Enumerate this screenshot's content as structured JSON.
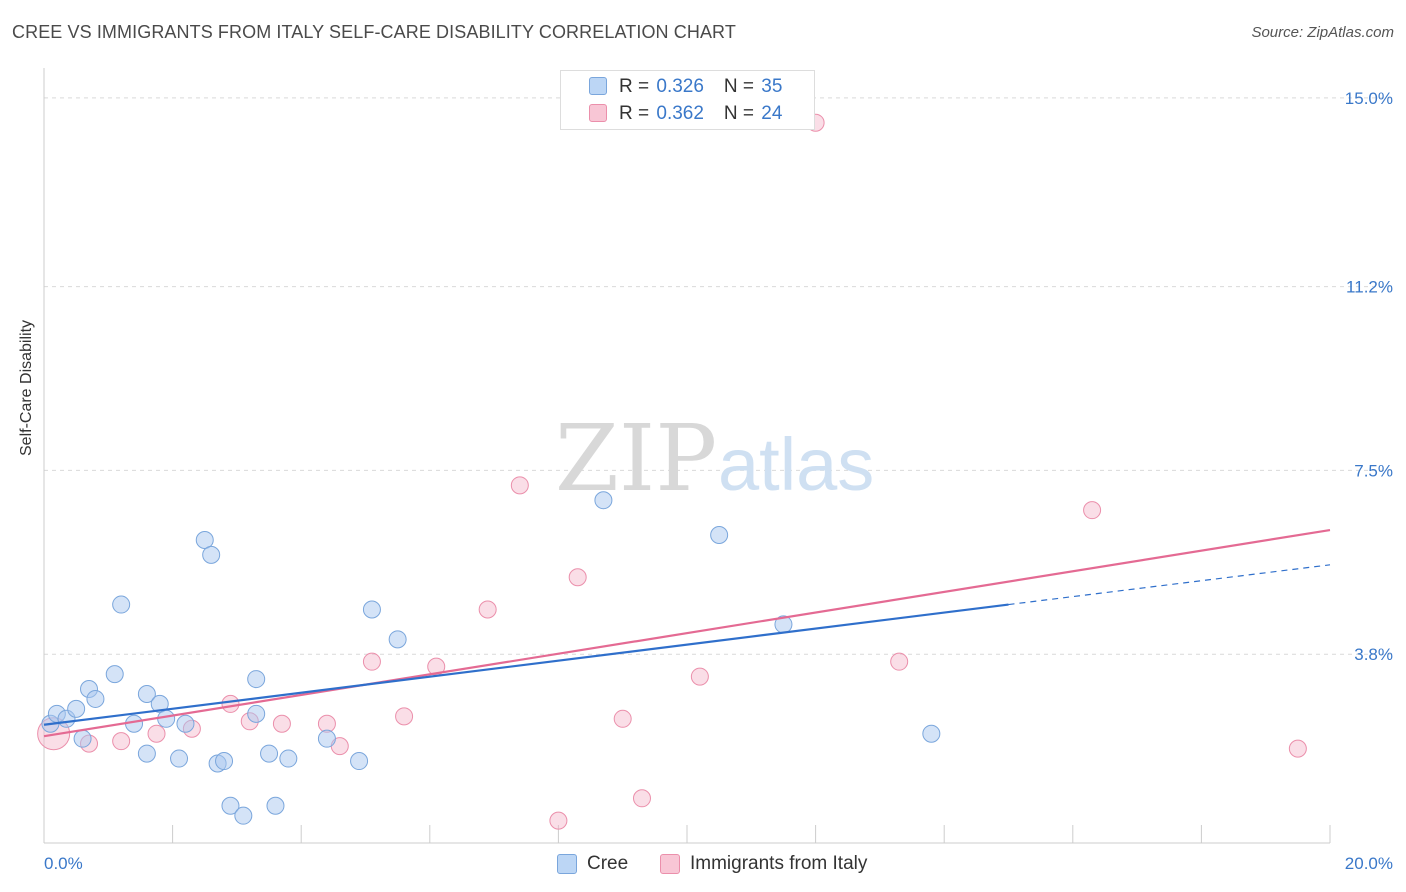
{
  "header": {
    "title": "CREE VS IMMIGRANTS FROM ITALY SELF-CARE DISABILITY CORRELATION CHART",
    "source": "Source: ZipAtlas.com"
  },
  "watermark": {
    "zip": "ZIP",
    "atlas": "atlas"
  },
  "legend": {
    "r_label": "R = ",
    "n_label": "N = ",
    "rows": [
      {
        "name": "Cree",
        "r": "0.326",
        "n": "35"
      },
      {
        "name": "Immigrants from Italy",
        "r": "0.362",
        "n": "24"
      }
    ]
  },
  "colors": {
    "cree_fill": "#a9c8f0",
    "cree_stroke": "#7aa6dc",
    "cree_line": "#2f6fcb",
    "italy_fill": "#f5b6c9",
    "italy_stroke": "#eb8fab",
    "italy_line": "#e46a93",
    "tick_label": "#3a78c9",
    "grid": "#d9d9d9"
  },
  "chart_data": {
    "type": "scatter",
    "title": "CREE VS IMMIGRANTS FROM ITALY SELF-CARE DISABILITY CORRELATION CHART",
    "xlabel": "",
    "ylabel": "Self-Care Disability",
    "xlim": [
      0,
      20
    ],
    "ylim": [
      0,
      15.4
    ],
    "x_tick_labels": [
      "0.0%",
      "20.0%"
    ],
    "y_ticks": [
      3.8,
      7.5,
      11.2,
      15.0
    ],
    "y_tick_labels": [
      "3.8%",
      "7.5%",
      "11.2%",
      "15.0%"
    ],
    "grid": true,
    "legend_position": "top-center",
    "series": [
      {
        "name": "Cree",
        "points": [
          [
            0.1,
            2.4
          ],
          [
            0.2,
            2.6
          ],
          [
            0.35,
            2.5
          ],
          [
            0.5,
            2.7
          ],
          [
            0.6,
            2.1
          ],
          [
            0.7,
            3.1
          ],
          [
            0.8,
            2.9
          ],
          [
            1.1,
            3.4
          ],
          [
            1.2,
            4.8
          ],
          [
            1.4,
            2.4
          ],
          [
            1.6,
            1.8
          ],
          [
            1.6,
            3.0
          ],
          [
            1.8,
            2.8
          ],
          [
            1.9,
            2.5
          ],
          [
            2.1,
            1.7
          ],
          [
            2.2,
            2.4
          ],
          [
            2.5,
            6.1
          ],
          [
            2.6,
            5.8
          ],
          [
            2.7,
            1.6
          ],
          [
            2.8,
            1.65
          ],
          [
            2.9,
            0.75
          ],
          [
            3.1,
            0.55
          ],
          [
            3.3,
            3.3
          ],
          [
            3.3,
            2.6
          ],
          [
            3.5,
            1.8
          ],
          [
            3.6,
            0.75
          ],
          [
            3.8,
            1.7
          ],
          [
            4.4,
            2.1
          ],
          [
            4.9,
            1.65
          ],
          [
            5.1,
            4.7
          ],
          [
            5.5,
            4.1
          ],
          [
            8.7,
            6.9
          ],
          [
            10.5,
            6.2
          ],
          [
            11.5,
            4.4
          ],
          [
            13.8,
            2.2
          ]
        ]
      },
      {
        "name": "Immigrants from Italy",
        "points": [
          [
            0.15,
            2.2
          ],
          [
            0.7,
            2.0
          ],
          [
            1.2,
            2.05
          ],
          [
            1.75,
            2.2
          ],
          [
            2.3,
            2.3
          ],
          [
            2.9,
            2.8
          ],
          [
            3.2,
            2.45
          ],
          [
            3.7,
            2.4
          ],
          [
            4.4,
            2.4
          ],
          [
            4.6,
            1.95
          ],
          [
            5.1,
            3.65
          ],
          [
            5.6,
            2.55
          ],
          [
            6.1,
            3.55
          ],
          [
            6.9,
            4.7
          ],
          [
            7.4,
            7.2
          ],
          [
            8.0,
            0.45
          ],
          [
            8.3,
            5.35
          ],
          [
            9.0,
            2.5
          ],
          [
            9.3,
            0.9
          ],
          [
            10.2,
            3.35
          ],
          [
            12.0,
            14.5
          ],
          [
            13.3,
            3.65
          ],
          [
            16.3,
            6.7
          ],
          [
            19.5,
            1.9
          ]
        ]
      }
    ],
    "trend_lines": [
      {
        "name": "Cree",
        "x0": 0,
        "y0": 2.38,
        "x1": 15.0,
        "y1": 4.8,
        "dashed_to_x": 20,
        "dashed_to_y": 5.6
      },
      {
        "name": "Immigrants from Italy",
        "x0": 0,
        "y0": 2.15,
        "x1": 20,
        "y1": 6.3
      }
    ]
  }
}
